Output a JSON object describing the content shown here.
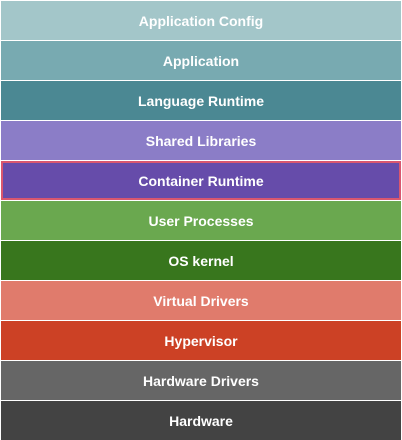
{
  "layers": [
    {
      "label": "Application Config",
      "color": "#a3c6c9",
      "highlighted": false
    },
    {
      "label": "Application",
      "color": "#78aab1",
      "highlighted": false
    },
    {
      "label": "Language Runtime",
      "color": "#4b8893",
      "highlighted": false
    },
    {
      "label": "Shared Libraries",
      "color": "#8b7dc7",
      "highlighted": false
    },
    {
      "label": "Container Runtime",
      "color": "#664caa",
      "highlighted": true,
      "highlight_color": "#d9576f"
    },
    {
      "label": "User Processes",
      "color": "#6aa84f",
      "highlighted": false
    },
    {
      "label": "OS kernel",
      "color": "#38761d",
      "highlighted": false
    },
    {
      "label": "Virtual Drivers",
      "color": "#e07b6c",
      "highlighted": false
    },
    {
      "label": "Hypervisor",
      "color": "#cc4125",
      "highlighted": false
    },
    {
      "label": "Hardware Drivers",
      "color": "#666666",
      "highlighted": false
    },
    {
      "label": "Hardware",
      "color": "#434343",
      "highlighted": false
    }
  ]
}
